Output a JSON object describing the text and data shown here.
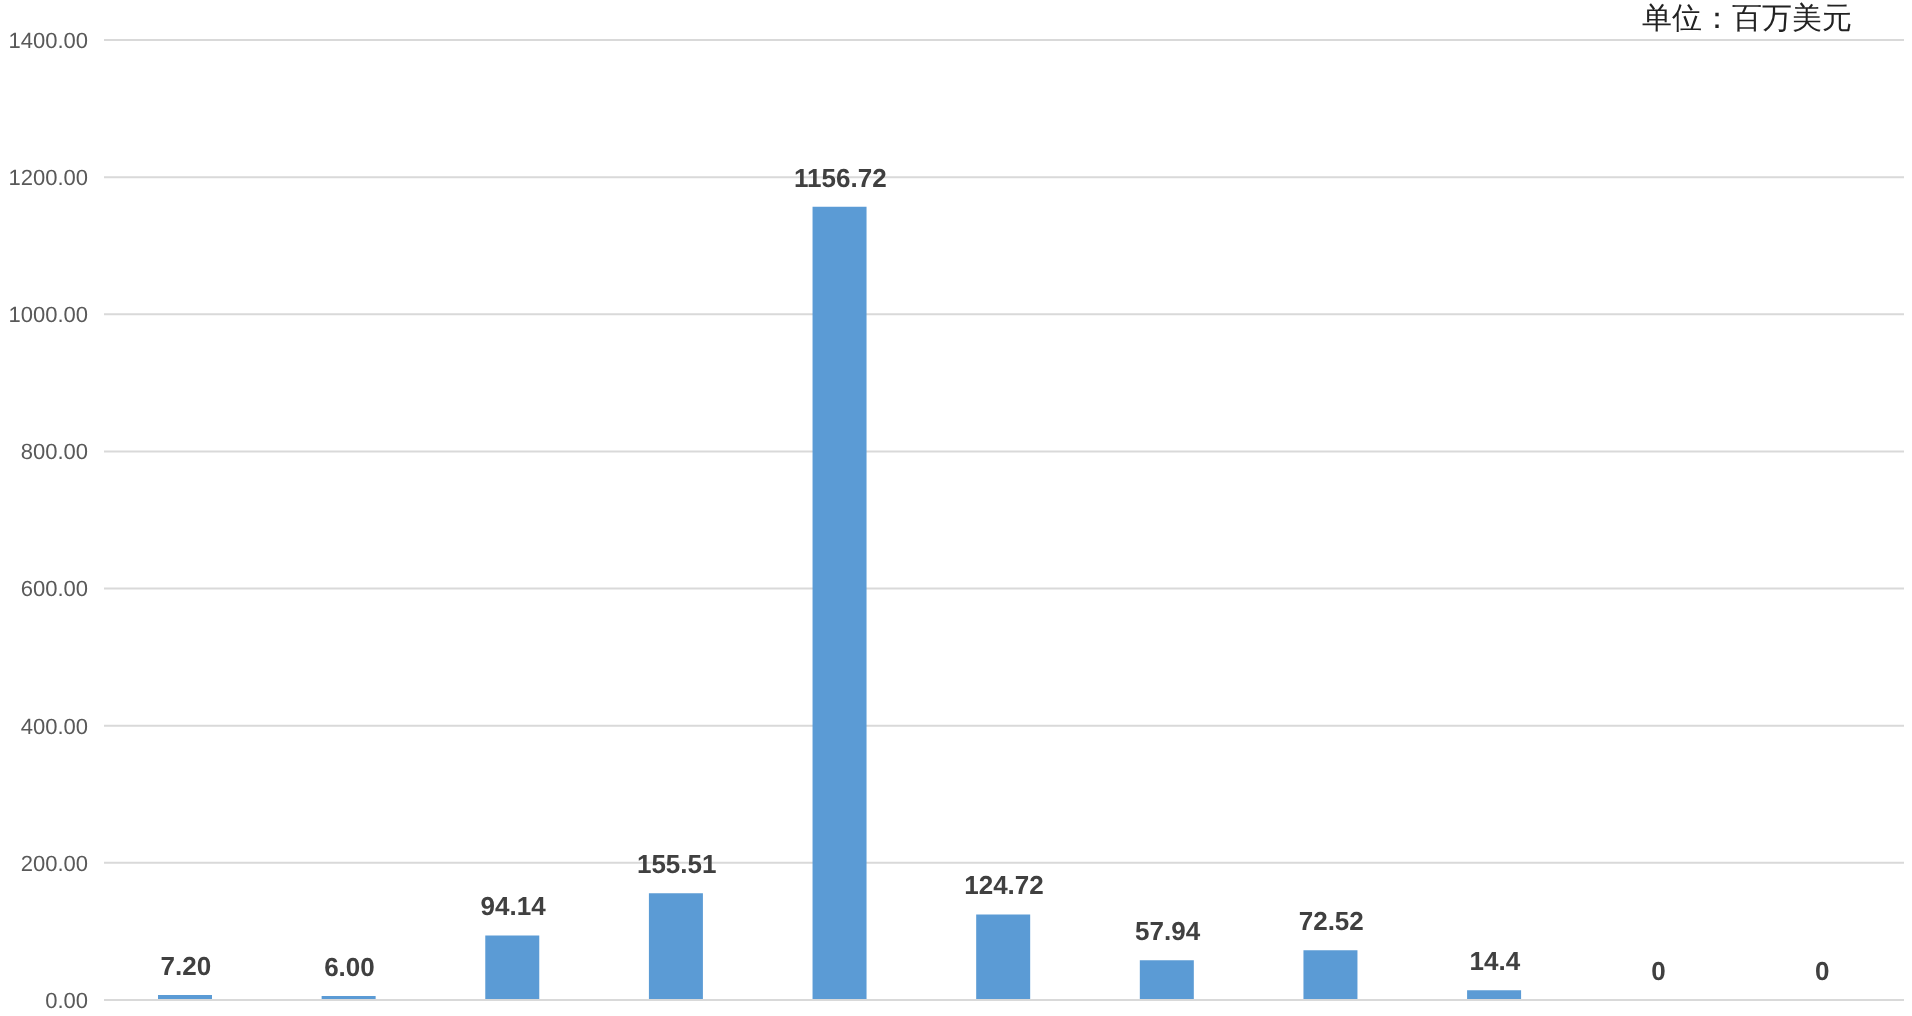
{
  "chart_data": {
    "type": "bar",
    "annotations": [
      "单位：百万美元"
    ],
    "categories": [
      null,
      null,
      null,
      null,
      null,
      null,
      null,
      null,
      null,
      null,
      null
    ],
    "values": [
      7.2,
      6.0,
      94.14,
      155.51,
      1156.72,
      124.72,
      57.94,
      72.52,
      14.4,
      0,
      0
    ],
    "value_labels": [
      "7.20",
      "6.00",
      "94.14",
      "155.51",
      "1156.72",
      "124.72",
      "57.94",
      "72.52",
      "14.4",
      "0",
      "0"
    ],
    "color": "#5b9bd5",
    "ylim": [
      0,
      1400
    ],
    "yticks": [
      {
        "value": 0,
        "label": "0.00"
      },
      {
        "value": 200,
        "label": "200.00"
      },
      {
        "value": 400,
        "label": "400.00"
      },
      {
        "value": 600,
        "label": "600.00"
      },
      {
        "value": 800,
        "label": "800.00"
      },
      {
        "value": 1000,
        "label": "1000.00"
      },
      {
        "value": 1200,
        "label": "1200.00"
      },
      {
        "value": 1400,
        "label": "1400.00"
      }
    ],
    "grid": "y"
  }
}
